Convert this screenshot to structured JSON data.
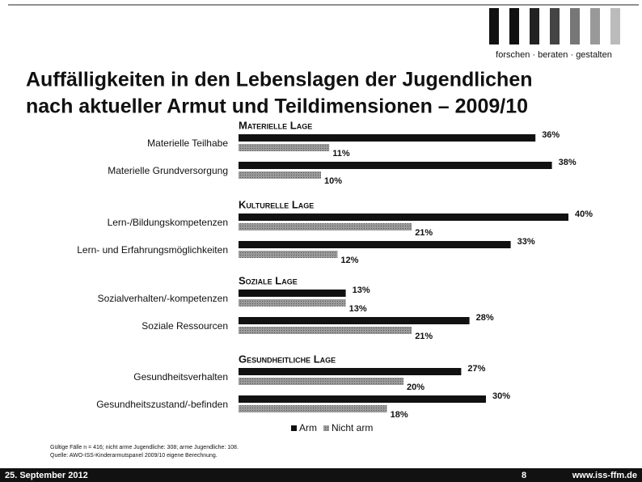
{
  "logo_text": "forschen · beraten · gestalten",
  "chart_data": {
    "type": "bar",
    "orientation": "horizontal",
    "title": [
      "Auffälligkeiten in den Lebenslagen der Jugendlichen",
      "nach aktueller Armut und Teildimensionen – 2009/10"
    ],
    "groups": [
      "Materielle Lage",
      "Kulturelle Lage",
      "Soziale Lage",
      "Gesundheitliche Lage"
    ],
    "categories": [
      "Materielle Teilhabe",
      "Materielle Grundversorgung",
      "Lern-/Bildungskompetenzen",
      "Lern- und Erfahrungsmöglichkeiten",
      "Sozialverhalten/-kompetenzen",
      "Soziale Ressourcen",
      "Gesundheitsverhalten",
      "Gesundheitszustand/-befinden"
    ],
    "series": [
      {
        "name": "Arm",
        "color": "#111111",
        "values": [
          36,
          38,
          40,
          33,
          13,
          28,
          27,
          30
        ],
        "value_labels": [
          "36%",
          "38%",
          "40%",
          "33%",
          "13%",
          "28%",
          "27%",
          "30%"
        ]
      },
      {
        "name": "Nicht arm",
        "color": "#8a8a8a",
        "values": [
          11,
          10,
          21,
          12,
          13,
          21,
          20,
          18
        ],
        "value_labels": [
          "11%",
          "10%",
          "21%",
          "12%",
          "13%",
          "21%",
          "20%",
          "18%"
        ]
      }
    ],
    "legend": "bottom",
    "notes": [
      "Gültige Fälle n = 416; nicht arme Jugendliche: 308; arme Jugendliche: 108.",
      "Quelle: AWO-ISS-Kinderarmutspanel 2009/10 eigene Berechnung."
    ]
  },
  "footer": {
    "date": "25. September 2012",
    "page": "8",
    "url": "www.iss-ffm.de"
  }
}
